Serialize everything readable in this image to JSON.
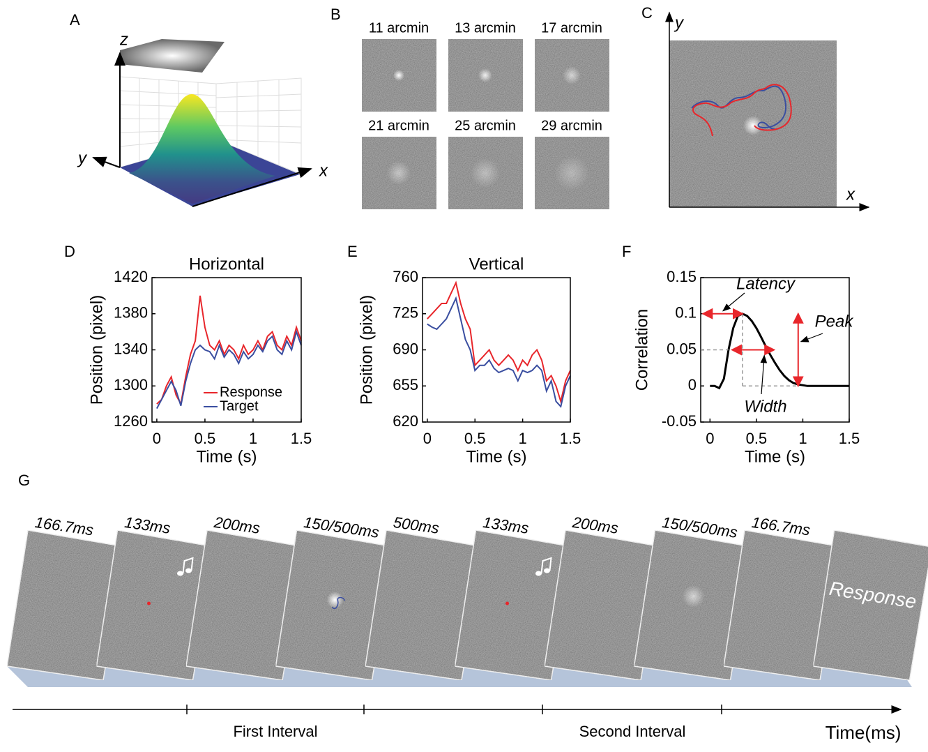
{
  "panels": {
    "A": {
      "label": "A",
      "axes": [
        "z",
        "y",
        "x"
      ]
    },
    "B": {
      "label": "B",
      "sizes": [
        "11 arcmin",
        "13 arcmin",
        "17 arcmin",
        "21 arcmin",
        "25 arcmin",
        "29 arcmin"
      ]
    },
    "C": {
      "label": "C",
      "axes": [
        "y",
        "x"
      ]
    },
    "G": {
      "label": "G",
      "durations": [
        "166.7ms",
        "133ms",
        "200ms",
        "150/500ms",
        "500ms",
        "133ms",
        "200ms",
        "150/500ms",
        "166.7ms"
      ],
      "response": "Response",
      "intervals": [
        "First Interval",
        "Second Interval"
      ],
      "axis_label": "Time(ms)"
    }
  },
  "chart_data": [
    {
      "type": "line",
      "panel": "D",
      "title": "Horizontal",
      "x_label": "Time (s)",
      "y_label": "Position (pixel)",
      "x": [
        0,
        0.05,
        0.1,
        0.15,
        0.2,
        0.25,
        0.3,
        0.35,
        0.4,
        0.45,
        0.5,
        0.55,
        0.6,
        0.65,
        0.7,
        0.75,
        0.8,
        0.85,
        0.9,
        0.95,
        1,
        1.05,
        1.1,
        1.15,
        1.2,
        1.25,
        1.3,
        1.35,
        1.4,
        1.45,
        1.5
      ],
      "series": [
        {
          "name": "Response",
          "color": "#e8262b",
          "values": [
            1280,
            1285,
            1300,
            1310,
            1290,
            1280,
            1310,
            1335,
            1350,
            1400,
            1365,
            1345,
            1340,
            1350,
            1335,
            1345,
            1340,
            1330,
            1345,
            1335,
            1340,
            1350,
            1340,
            1355,
            1360,
            1345,
            1340,
            1355,
            1345,
            1365,
            1350
          ]
        },
        {
          "name": "Target",
          "color": "#3a4ea0",
          "values": [
            1275,
            1285,
            1295,
            1305,
            1295,
            1278,
            1305,
            1325,
            1340,
            1345,
            1340,
            1338,
            1330,
            1345,
            1332,
            1340,
            1335,
            1325,
            1338,
            1330,
            1335,
            1345,
            1338,
            1350,
            1355,
            1340,
            1335,
            1350,
            1340,
            1360,
            1345
          ]
        }
      ],
      "xlim": [
        -0.05,
        1.5
      ],
      "xticks": [
        0,
        0.5,
        1,
        1.5
      ],
      "ylim": [
        1260,
        1420
      ],
      "yticks": [
        1260,
        1300,
        1340,
        1380,
        1420
      ],
      "legend": "lower right"
    },
    {
      "type": "line",
      "panel": "E",
      "title": "Vertical",
      "x_label": "Time (s)",
      "y_label": "Position (pixel)",
      "x": [
        0,
        0.05,
        0.1,
        0.15,
        0.2,
        0.25,
        0.3,
        0.35,
        0.4,
        0.45,
        0.5,
        0.55,
        0.6,
        0.65,
        0.7,
        0.75,
        0.8,
        0.85,
        0.9,
        0.95,
        1,
        1.05,
        1.1,
        1.15,
        1.2,
        1.25,
        1.3,
        1.35,
        1.4,
        1.45,
        1.5
      ],
      "series": [
        {
          "color": "#e8262b",
          "values": [
            720,
            725,
            730,
            735,
            735,
            745,
            755,
            735,
            720,
            710,
            675,
            680,
            685,
            690,
            680,
            675,
            680,
            685,
            680,
            670,
            680,
            675,
            685,
            690,
            680,
            660,
            665,
            655,
            640,
            660,
            670
          ]
        },
        {
          "color": "#3a4ea0",
          "values": [
            715,
            712,
            710,
            715,
            720,
            730,
            740,
            720,
            700,
            690,
            670,
            675,
            675,
            680,
            672,
            668,
            670,
            672,
            670,
            660,
            670,
            668,
            670,
            675,
            670,
            650,
            660,
            640,
            635,
            655,
            665
          ]
        }
      ],
      "xlim": [
        -0.05,
        1.5
      ],
      "xticks": [
        0,
        0.5,
        1,
        1.5
      ],
      "ylim": [
        620,
        760
      ],
      "yticks": [
        620,
        655,
        690,
        725,
        760
      ]
    },
    {
      "type": "line",
      "panel": "F",
      "x_label": "Time (s)",
      "y_label": "Correlation",
      "x": [
        0,
        0.05,
        0.1,
        0.15,
        0.2,
        0.25,
        0.3,
        0.35,
        0.4,
        0.45,
        0.5,
        0.55,
        0.6,
        0.65,
        0.7,
        0.75,
        0.8,
        0.85,
        0.9,
        0.95,
        1,
        1.05,
        1.1,
        1.15,
        1.2,
        1.25,
        1.3,
        1.35,
        1.4,
        1.45,
        1.5
      ],
      "series": [
        {
          "color": "#000000",
          "values": [
            0,
            0,
            -0.003,
            0.01,
            0.05,
            0.08,
            0.097,
            0.1,
            0.097,
            0.09,
            0.08,
            0.068,
            0.055,
            0.043,
            0.032,
            0.022,
            0.014,
            0.008,
            0.004,
            0.002,
            0.001,
            0,
            0,
            0,
            0,
            0,
            0,
            0,
            0,
            0,
            0
          ]
        }
      ],
      "annotations": [
        "Latency",
        "Peak",
        "Width"
      ],
      "xlim": [
        -0.1,
        1.5
      ],
      "xticks": [
        0,
        0.5,
        1,
        1.5
      ],
      "ylim": [
        -0.05,
        0.15
      ],
      "yticks": [
        -0.05,
        0,
        0.05,
        0.1,
        0.15
      ]
    }
  ]
}
